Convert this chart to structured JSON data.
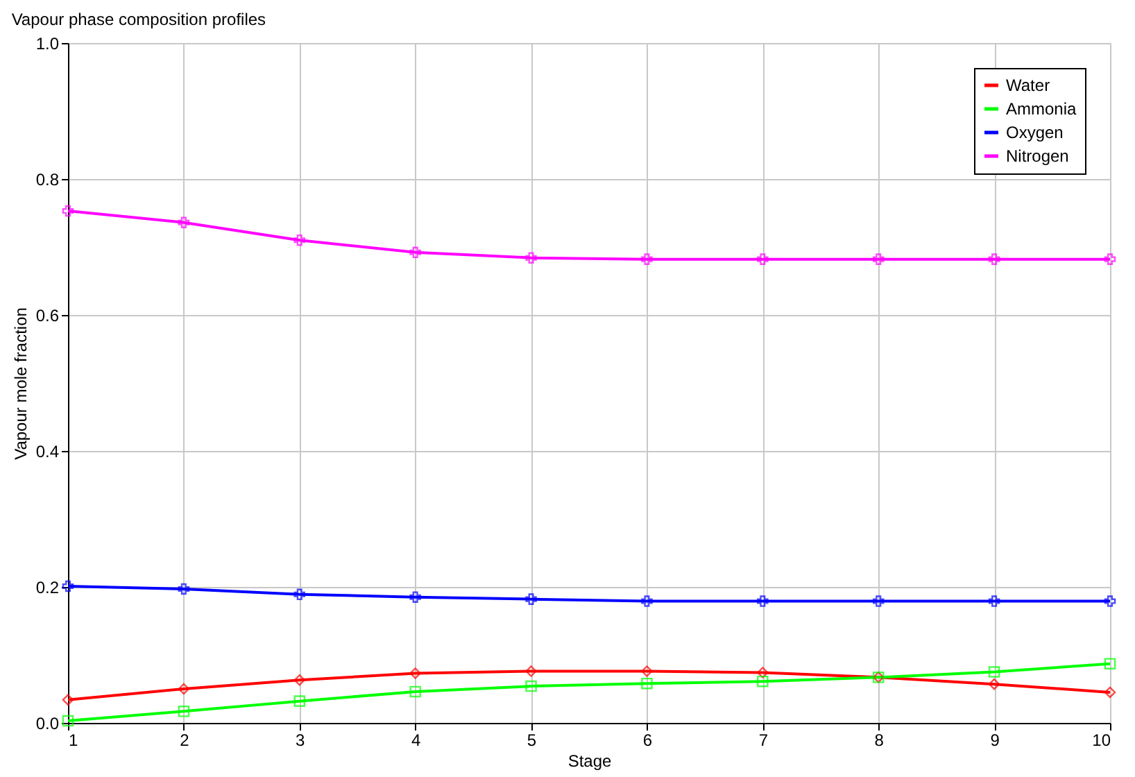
{
  "chart_data": {
    "type": "line",
    "title": "Vapour phase composition profiles",
    "xlabel": "Stage",
    "ylabel": "Vapour mole fraction",
    "x": [
      1,
      2,
      3,
      4,
      5,
      6,
      7,
      8,
      9,
      10
    ],
    "xlim": [
      1,
      10
    ],
    "xticks": [
      1,
      2,
      3,
      4,
      5,
      6,
      7,
      8,
      9,
      10
    ],
    "ylim": [
      0,
      1
    ],
    "yticks": [
      {
        "value": 0,
        "label": "0.0"
      },
      0.2,
      0.4,
      0.6,
      0.8,
      {
        "value": 1,
        "label": "1.0"
      }
    ],
    "grid": true,
    "legend": "top right",
    "line_style": "solid",
    "series": [
      {
        "name": "Water",
        "color": "#ff0000",
        "marker": "diamond",
        "values": [
          0.034,
          0.05,
          0.063,
          0.073,
          0.076,
          0.076,
          0.074,
          0.067,
          0.057,
          0.045
        ]
      },
      {
        "name": "Ammonia",
        "color": "#00ff00",
        "marker": "square",
        "values": [
          0.003,
          0.017,
          0.032,
          0.046,
          0.054,
          0.058,
          0.061,
          0.067,
          0.075,
          0.087
        ]
      },
      {
        "name": "Oxygen",
        "color": "#0000ff",
        "marker": "cross",
        "values": [
          0.201,
          0.197,
          0.189,
          0.185,
          0.182,
          0.179,
          0.179,
          0.179,
          0.179,
          0.179
        ]
      },
      {
        "name": "Nitrogen",
        "color": "#ff00ff",
        "marker": "cross",
        "values": [
          0.753,
          0.736,
          0.71,
          0.692,
          0.684,
          0.682,
          0.682,
          0.682,
          0.682,
          0.682
        ]
      }
    ]
  }
}
